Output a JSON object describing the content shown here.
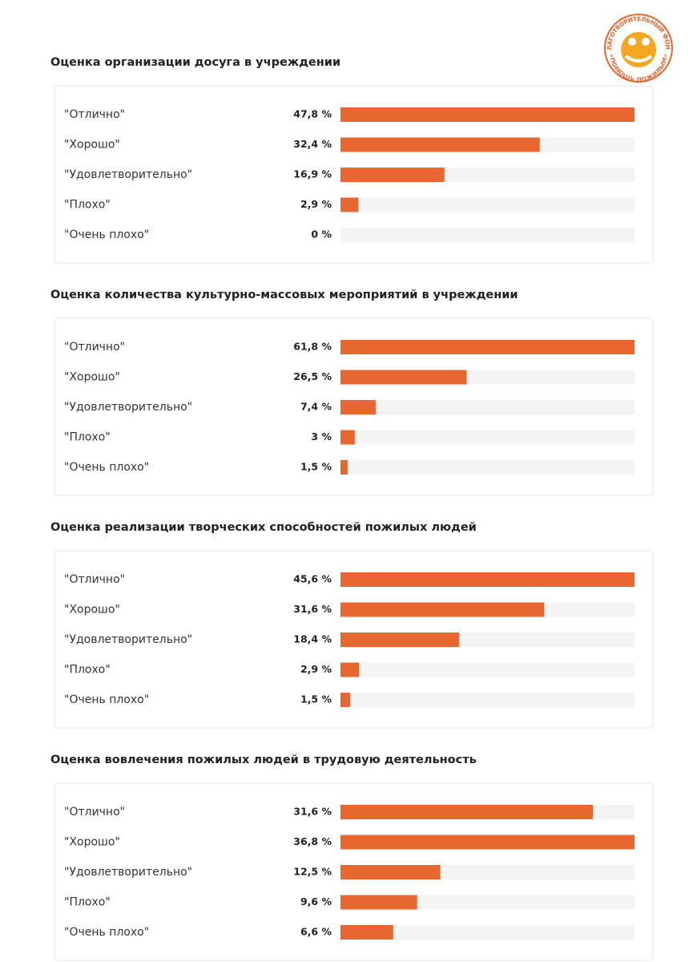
{
  "logo": {
    "top": "БЛАГОТВОРИТЕЛЬНЫЙ ФОНД",
    "bottom": "«ПОМОЩЬ ПОЖИЛЫМ»"
  },
  "chart_data": [
    {
      "type": "bar",
      "title": "Оценка организации досуга в учреждении",
      "color": "#e8662f",
      "categories": [
        "\"Отлично\"",
        "\"Хорошо\"",
        "\"Удовлетворительно\"",
        "\"Плохо\"",
        "\"Очень плохо\""
      ],
      "values": [
        47.8,
        32.4,
        16.9,
        2.9,
        0
      ],
      "value_labels": [
        "47,8 %",
        "32,4 %",
        "16,9 %",
        "2,9 %",
        "0 %"
      ]
    },
    {
      "type": "bar",
      "title": "Оценка количества культурно-массовых мероприятий в учреждении",
      "color": "#e8662f",
      "categories": [
        "\"Отлично\"",
        "\"Хорошо\"",
        "\"Удовлетворительно\"",
        "\"Плохо\"",
        "\"Очень плохо\""
      ],
      "values": [
        61.8,
        26.5,
        7.4,
        3,
        1.5
      ],
      "value_labels": [
        "61,8 %",
        "26,5 %",
        "7,4 %",
        "3 %",
        "1,5 %"
      ]
    },
    {
      "type": "bar",
      "title": "Оценка реализации творческих способностей пожилых людей",
      "color": "#e8662f",
      "categories": [
        "\"Отлично\"",
        "\"Хорошо\"",
        "\"Удовлетворительно\"",
        "\"Плохо\"",
        "\"Очень плохо\""
      ],
      "values": [
        45.6,
        31.6,
        18.4,
        2.9,
        1.5
      ],
      "value_labels": [
        "45,6 %",
        "31,6 %",
        "18,4 %",
        "2,9 %",
        "1,5 %"
      ]
    },
    {
      "type": "bar",
      "title": "Оценка вовлечения пожилых людей в трудовую деятельность",
      "color": "#e8662f",
      "categories": [
        "\"Отлично\"",
        "\"Хорошо\"",
        "\"Удовлетворительно\"",
        "\"Плохо\"",
        "\"Очень плохо\""
      ],
      "values": [
        31.6,
        36.8,
        12.5,
        9.6,
        6.6
      ],
      "value_labels": [
        "31,6 %",
        "36,8 %",
        "12,5 %",
        "9,6 %",
        "6,6 %"
      ]
    }
  ]
}
